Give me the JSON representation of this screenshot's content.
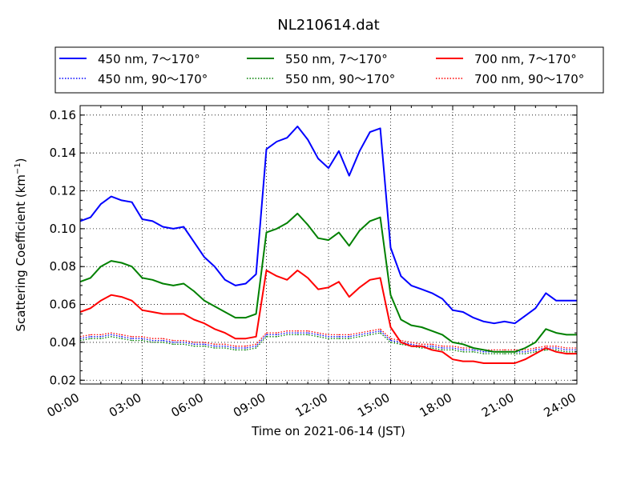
{
  "chart_data": {
    "type": "line",
    "title": "NL210614.dat",
    "xlabel": "Time on 2021-06-14 (JST)",
    "ylabel_main": "Scattering Coefficient (km",
    "ylabel_sup": "−1",
    "ylabel_end": ")",
    "xlim": [
      0,
      24
    ],
    "ylim": [
      0.018,
      0.165
    ],
    "grid": true,
    "legend_position": "top",
    "x_ticks": [
      0,
      3,
      6,
      9,
      12,
      15,
      18,
      21,
      24
    ],
    "x_tick_labels": [
      "00:00",
      "03:00",
      "06:00",
      "09:00",
      "12:00",
      "15:00",
      "18:00",
      "21:00",
      "24:00"
    ],
    "y_ticks": [
      0.02,
      0.04,
      0.06,
      0.08,
      0.1,
      0.12,
      0.14,
      0.16
    ],
    "y_tick_labels": [
      "0.02",
      "0.04",
      "0.06",
      "0.08",
      "0.10",
      "0.12",
      "0.14",
      "0.16"
    ],
    "colors": {
      "450": "#0000ff",
      "550": "#008000",
      "700": "#ff0000"
    },
    "x": [
      0,
      0.5,
      1,
      1.5,
      2,
      2.5,
      3,
      3.5,
      4,
      4.5,
      5,
      5.5,
      6,
      6.5,
      7,
      7.5,
      8,
      8.5,
      9,
      9.5,
      10,
      10.5,
      11,
      11.5,
      12,
      12.5,
      13,
      13.5,
      14,
      14.5,
      15,
      15.5,
      16,
      16.5,
      17,
      17.5,
      18,
      18.5,
      19,
      19.5,
      20,
      20.5,
      21,
      21.5,
      22,
      22.5,
      23,
      23.5,
      24
    ],
    "series": [
      {
        "name": "450 nm, 7～170°",
        "color": "450",
        "style": "solid",
        "values": [
          0.104,
          0.106,
          0.113,
          0.117,
          0.115,
          0.114,
          0.105,
          0.104,
          0.101,
          0.1,
          0.101,
          0.093,
          0.085,
          0.08,
          0.073,
          0.07,
          0.071,
          0.076,
          0.142,
          0.146,
          0.148,
          0.154,
          0.147,
          0.137,
          0.132,
          0.141,
          0.128,
          0.141,
          0.151,
          0.153,
          0.09,
          0.075,
          0.07,
          0.068,
          0.066,
          0.063,
          0.057,
          0.056,
          0.053,
          0.051,
          0.05,
          0.051,
          0.05,
          0.054,
          0.058,
          0.066,
          0.062,
          0.062,
          0.062
        ]
      },
      {
        "name": "450 nm, 90～170°",
        "color": "450",
        "style": "dotted",
        "values": [
          0.042,
          0.043,
          0.043,
          0.044,
          0.043,
          0.042,
          0.042,
          0.041,
          0.041,
          0.04,
          0.04,
          0.039,
          0.039,
          0.038,
          0.038,
          0.037,
          0.037,
          0.038,
          0.044,
          0.044,
          0.045,
          0.045,
          0.045,
          0.044,
          0.043,
          0.043,
          0.043,
          0.044,
          0.045,
          0.046,
          0.041,
          0.04,
          0.039,
          0.038,
          0.038,
          0.037,
          0.037,
          0.036,
          0.036,
          0.035,
          0.035,
          0.035,
          0.035,
          0.035,
          0.036,
          0.037,
          0.037,
          0.036,
          0.036
        ]
      },
      {
        "name": "550 nm, 7～170°",
        "color": "550",
        "style": "solid",
        "values": [
          0.072,
          0.074,
          0.08,
          0.083,
          0.082,
          0.08,
          0.074,
          0.073,
          0.071,
          0.07,
          0.071,
          0.067,
          0.062,
          0.059,
          0.056,
          0.053,
          0.053,
          0.055,
          0.098,
          0.1,
          0.103,
          0.108,
          0.102,
          0.095,
          0.094,
          0.098,
          0.091,
          0.099,
          0.104,
          0.106,
          0.065,
          0.052,
          0.049,
          0.048,
          0.046,
          0.044,
          0.04,
          0.039,
          0.037,
          0.036,
          0.035,
          0.035,
          0.035,
          0.037,
          0.04,
          0.047,
          0.045,
          0.044,
          0.044
        ]
      },
      {
        "name": "550 nm, 90～170°",
        "color": "550",
        "style": "dotted",
        "values": [
          0.041,
          0.042,
          0.042,
          0.043,
          0.042,
          0.041,
          0.041,
          0.04,
          0.04,
          0.039,
          0.039,
          0.038,
          0.038,
          0.037,
          0.037,
          0.036,
          0.036,
          0.037,
          0.043,
          0.043,
          0.044,
          0.044,
          0.044,
          0.043,
          0.042,
          0.042,
          0.042,
          0.043,
          0.044,
          0.045,
          0.04,
          0.039,
          0.038,
          0.037,
          0.037,
          0.036,
          0.036,
          0.035,
          0.035,
          0.034,
          0.034,
          0.034,
          0.034,
          0.034,
          0.035,
          0.036,
          0.036,
          0.035,
          0.035
        ]
      },
      {
        "name": "700 nm, 7～170°",
        "color": "700",
        "style": "solid",
        "values": [
          0.056,
          0.058,
          0.062,
          0.065,
          0.064,
          0.062,
          0.057,
          0.056,
          0.055,
          0.055,
          0.055,
          0.052,
          0.05,
          0.047,
          0.045,
          0.042,
          0.042,
          0.043,
          0.078,
          0.075,
          0.073,
          0.078,
          0.074,
          0.068,
          0.069,
          0.072,
          0.064,
          0.069,
          0.073,
          0.074,
          0.048,
          0.04,
          0.038,
          0.038,
          0.036,
          0.035,
          0.031,
          0.03,
          0.03,
          0.029,
          0.029,
          0.029,
          0.029,
          0.031,
          0.034,
          0.037,
          0.035,
          0.034,
          0.034
        ]
      },
      {
        "name": "700 nm, 90～170°",
        "color": "700",
        "style": "dotted",
        "values": [
          0.043,
          0.044,
          0.044,
          0.045,
          0.044,
          0.043,
          0.043,
          0.042,
          0.042,
          0.041,
          0.041,
          0.04,
          0.04,
          0.039,
          0.039,
          0.038,
          0.038,
          0.039,
          0.045,
          0.045,
          0.046,
          0.046,
          0.046,
          0.045,
          0.044,
          0.044,
          0.044,
          0.045,
          0.046,
          0.047,
          0.042,
          0.041,
          0.04,
          0.039,
          0.039,
          0.038,
          0.038,
          0.037,
          0.037,
          0.036,
          0.036,
          0.036,
          0.036,
          0.036,
          0.037,
          0.038,
          0.038,
          0.037,
          0.037
        ]
      }
    ]
  }
}
